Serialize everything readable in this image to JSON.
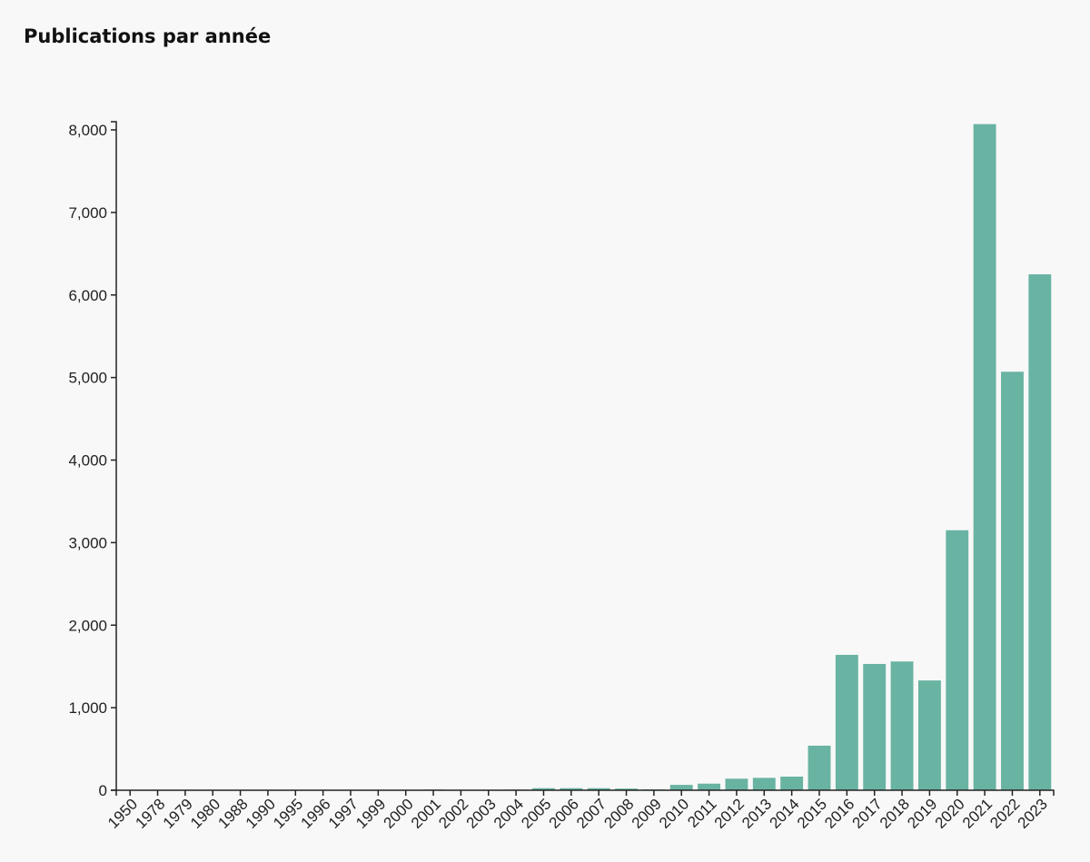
{
  "chart_data": {
    "type": "bar",
    "title": "Publications par année",
    "xlabel": "",
    "ylabel": "",
    "categories": [
      "1950",
      "1978",
      "1979",
      "1980",
      "1988",
      "1990",
      "1995",
      "1996",
      "1997",
      "1999",
      "2000",
      "2001",
      "2002",
      "2003",
      "2004",
      "2005",
      "2006",
      "2007",
      "2008",
      "2009",
      "2010",
      "2011",
      "2012",
      "2013",
      "2014",
      "2015",
      "2016",
      "2017",
      "2018",
      "2019",
      "2020",
      "2021",
      "2022",
      "2023"
    ],
    "values": [
      1,
      1,
      1,
      1,
      1,
      1,
      1,
      2,
      2,
      5,
      3,
      8,
      5,
      5,
      8,
      25,
      25,
      25,
      20,
      10,
      65,
      80,
      140,
      150,
      165,
      540,
      1640,
      1530,
      1560,
      1330,
      3150,
      8070,
      5070,
      6250
    ],
    "ylim": [
      0,
      8000
    ],
    "yticks": [
      0,
      1000,
      2000,
      3000,
      4000,
      5000,
      6000,
      7000,
      8000
    ],
    "ytick_labels": [
      "0",
      "1,000",
      "2,000",
      "3,000",
      "4,000",
      "5,000",
      "6,000",
      "7,000",
      "8,000"
    ],
    "color": "#69b3a2",
    "grid": false,
    "legend": "none"
  }
}
